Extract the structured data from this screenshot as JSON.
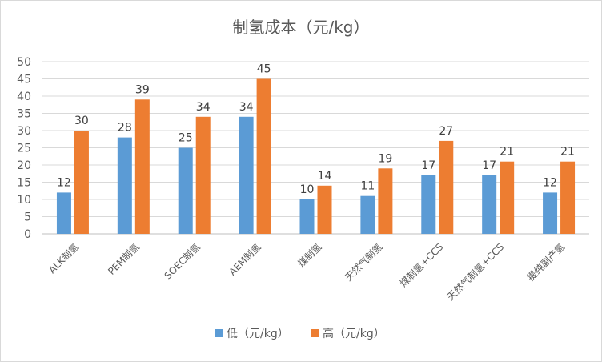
{
  "chart_data": {
    "type": "bar",
    "title": "制氢成本（元/kg）",
    "categories": [
      "ALK制氢",
      "PEM制氢",
      "SOEC制氢",
      "AEM制氢",
      "煤制氢",
      "天然气制氢",
      "煤制氢+CCS",
      "天然气制氢+CCS",
      "提纯副产氢"
    ],
    "series": [
      {
        "name": "低（元/kg）",
        "color": "#5B9BD5",
        "values": [
          12,
          28,
          25,
          34,
          10,
          11,
          17,
          17,
          12
        ]
      },
      {
        "name": "高（元/kg）",
        "color": "#ED7D31",
        "values": [
          30,
          39,
          34,
          45,
          14,
          19,
          27,
          21,
          21
        ]
      }
    ],
    "ylim": [
      0,
      50
    ],
    "yticks": [
      0,
      5,
      10,
      15,
      20,
      25,
      30,
      35,
      40,
      45,
      50
    ],
    "grid": true,
    "legend": "bottom",
    "data_labels": true
  }
}
